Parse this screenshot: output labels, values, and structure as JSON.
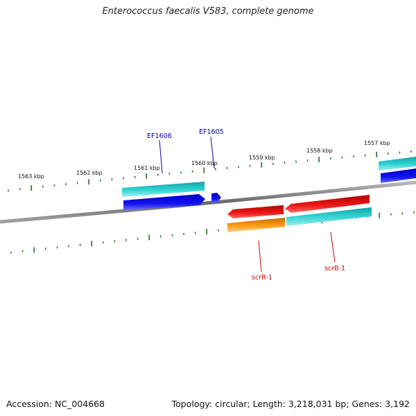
{
  "title": "Enterococcus faecalis V583, complete genome",
  "footer": {
    "accession": "Accession: NC_004668",
    "summary": "Topology: circular; Length: 3,218,031 bp; Genes: 3,192"
  },
  "ruler": {
    "upper_labels": [
      "1563 kbp",
      "1562 kbp",
      "1561 kbp",
      "1560 kbp",
      "1559 kbp",
      "1558 kbp",
      "1557 kbp"
    ]
  },
  "genes": [
    {
      "label": "EF1606",
      "color": "#0000aa"
    },
    {
      "label": "EF1605",
      "color": "#0000aa"
    },
    {
      "label": "scrR-1",
      "color": "#cc0000"
    },
    {
      "label": "scrB-1",
      "color": "#cc0000"
    }
  ],
  "colors": {
    "backbone": "#808080",
    "tick": "#2e7d2e",
    "cyan": "#20c8c8",
    "blue": "#1010e0",
    "red": "#e01010",
    "orange": "#f59a10"
  }
}
